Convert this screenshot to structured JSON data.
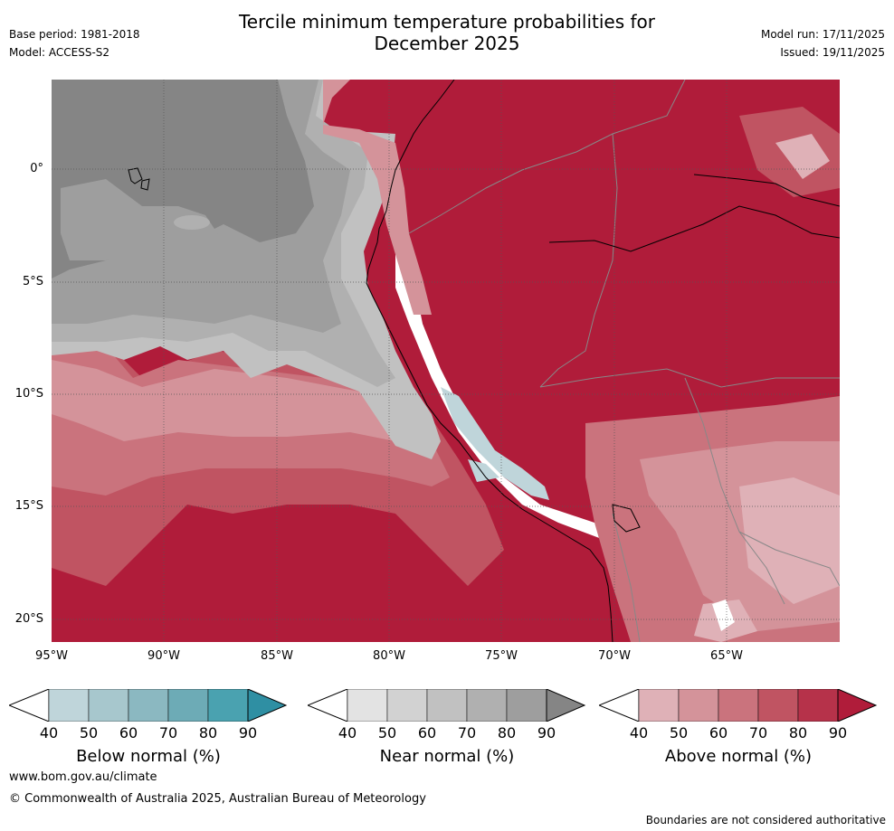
{
  "header": {
    "title_line1": "Tercile minimum temperature probabilities for",
    "title_line2": "December 2025",
    "base_period": "Base period: 1981-2018",
    "model": "Model: ACCESS-S2",
    "model_run": "Model run: 17/11/2025",
    "issued": "Issued: 19/11/2025"
  },
  "map": {
    "lat_labels": [
      "0°",
      "5°S",
      "10°S",
      "15°S",
      "20°S"
    ],
    "lon_labels": [
      "95°W",
      "90°W",
      "85°W",
      "80°W",
      "75°W",
      "70°W",
      "65°W"
    ]
  },
  "colorbars": [
    {
      "label": "Below normal (%)",
      "ticks": [
        "40",
        "50",
        "60",
        "70",
        "80",
        "90"
      ],
      "colors": [
        "#bfd5da",
        "#a7c7cd",
        "#8bb8c1",
        "#6dabb6",
        "#4aa2b0",
        "#2f8fa3"
      ]
    },
    {
      "label": "Near normal (%)",
      "ticks": [
        "40",
        "50",
        "60",
        "70",
        "80",
        "90"
      ],
      "colors": [
        "#e3e3e3",
        "#d2d2d2",
        "#c1c1c1",
        "#b0b0b0",
        "#9e9e9e",
        "#858585"
      ]
    },
    {
      "label": "Above normal (%)",
      "ticks": [
        "40",
        "50",
        "60",
        "70",
        "80",
        "90"
      ],
      "colors": [
        "#dfb1b7",
        "#d4939a",
        "#ca737d",
        "#c05462",
        "#b6324a",
        "#b01c3a"
      ]
    }
  ],
  "footer": {
    "website": "www.bom.gov.au/climate",
    "copyright": "© Commonwealth of Australia 2025, Australian Bureau of Meteorology",
    "disclaimer": "Boundaries are not considered authoritative"
  }
}
